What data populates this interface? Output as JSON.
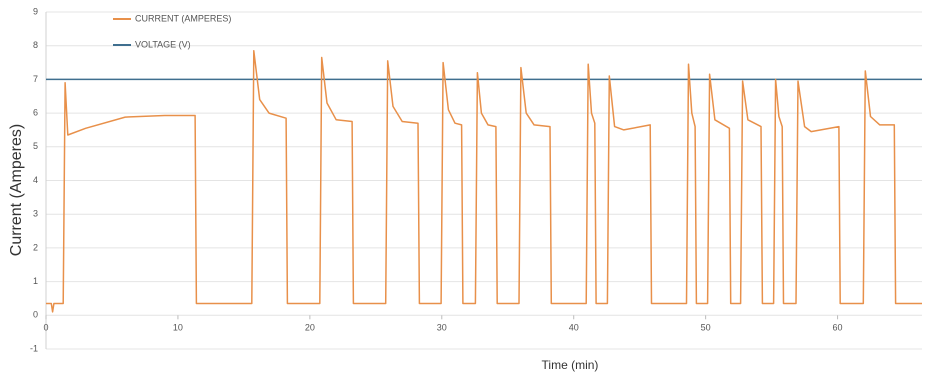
{
  "chart_data": {
    "type": "line",
    "xlabel": "Time (min)",
    "ylabel": "Current (Amperes)",
    "xlim": [
      0,
      66.4
    ],
    "ylim": [
      -1,
      9
    ],
    "xticks": [
      0,
      10,
      20,
      30,
      40,
      50,
      60
    ],
    "yticks": [
      -1,
      0,
      1,
      2,
      3,
      4,
      5,
      6,
      7,
      8,
      9
    ],
    "grid": true,
    "legend": "upper left",
    "series": [
      {
        "name": "CURRENT (AMPERES)",
        "color": "#e8904a",
        "x": [
          0,
          0.4,
          0.5,
          0.6,
          1.3,
          1.45,
          1.65,
          3,
          6,
          9,
          11.3,
          11.4,
          15.6,
          15.75,
          16.2,
          16.9,
          18.2,
          18.3,
          20.75,
          20.9,
          21.3,
          22,
          23.2,
          23.3,
          25.75,
          25.9,
          26.3,
          27,
          28.2,
          28.3,
          29.95,
          30.1,
          30.5,
          31.0,
          31.5,
          31.6,
          32.55,
          32.7,
          33.0,
          33.5,
          34.1,
          34.2,
          35.85,
          36.0,
          36.4,
          37,
          38.2,
          38.3,
          40.95,
          41.1,
          41.35,
          41.6,
          41.7,
          42.55,
          42.7,
          43.1,
          43.8,
          45.8,
          45.9,
          48.55,
          48.7,
          48.95,
          49.2,
          49.3,
          50.15,
          50.3,
          50.7,
          51.8,
          51.9,
          52.65,
          52.8,
          53.2,
          54.2,
          54.3,
          55.15,
          55.3,
          55.55,
          55.8,
          55.9,
          56.85,
          57.0,
          57.5,
          58,
          60.1,
          60.2,
          61.95,
          62.1,
          62.5,
          63.2,
          64.3,
          64.4,
          66.4
        ],
        "values": [
          0.35,
          0.35,
          0.1,
          0.35,
          0.35,
          6.9,
          5.35,
          5.55,
          5.88,
          5.93,
          5.93,
          0.35,
          0.35,
          7.85,
          6.4,
          6.0,
          5.85,
          0.35,
          0.35,
          7.65,
          6.3,
          5.8,
          5.75,
          0.35,
          0.35,
          7.55,
          6.2,
          5.75,
          5.7,
          0.35,
          0.35,
          7.5,
          6.1,
          5.7,
          5.65,
          0.35,
          0.35,
          7.2,
          6.0,
          5.65,
          5.6,
          0.35,
          0.35,
          7.35,
          6.0,
          5.65,
          5.6,
          0.35,
          0.35,
          7.45,
          6.0,
          5.7,
          0.35,
          0.35,
          7.1,
          5.6,
          5.5,
          5.65,
          0.35,
          0.35,
          7.45,
          6.0,
          5.6,
          0.35,
          0.35,
          7.15,
          5.8,
          5.55,
          0.35,
          0.35,
          6.95,
          5.8,
          5.6,
          0.35,
          0.35,
          7.0,
          5.9,
          5.6,
          0.35,
          0.35,
          6.95,
          5.6,
          5.45,
          5.6,
          0.35,
          0.35,
          7.25,
          5.9,
          5.65,
          5.65,
          0.35,
          0.35
        ]
      },
      {
        "name": "VOLTAGE (V)",
        "color": "#3f6f8f",
        "x": [
          0,
          66.4
        ],
        "values": [
          7,
          7
        ]
      }
    ]
  }
}
